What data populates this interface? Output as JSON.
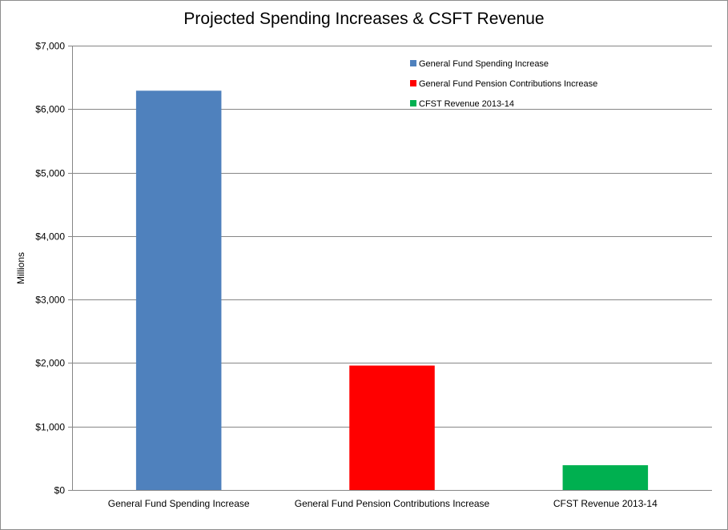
{
  "chart_data": {
    "type": "bar",
    "title": "Projected Spending Increases & CSFT Revenue",
    "xlabel": "",
    "ylabel": "Millions",
    "categories": [
      "General Fund Spending Increase",
      "General Fund Pension Contributions Increase",
      "CFST Revenue 2013-14"
    ],
    "values": [
      6290,
      1960,
      390
    ],
    "colors": [
      "#4F81BD",
      "#FF0000",
      "#00B050"
    ],
    "ylim": [
      0,
      7000
    ],
    "y_ticks": [
      0,
      1000,
      2000,
      3000,
      4000,
      5000,
      6000,
      7000
    ],
    "y_tick_labels": [
      "$0",
      "$1,000",
      "$2,000",
      "$3,000",
      "$4,000",
      "$5,000",
      "$6,000",
      "$7,000"
    ],
    "legend": {
      "position": "top-right",
      "entries": [
        {
          "label": "General Fund Spending Increase",
          "color": "#4F81BD"
        },
        {
          "label": "General Fund Pension Contributions Increase",
          "color": "#FF0000"
        },
        {
          "label": "CFST Revenue 2013-14",
          "color": "#00B050"
        }
      ]
    },
    "grid": true
  }
}
